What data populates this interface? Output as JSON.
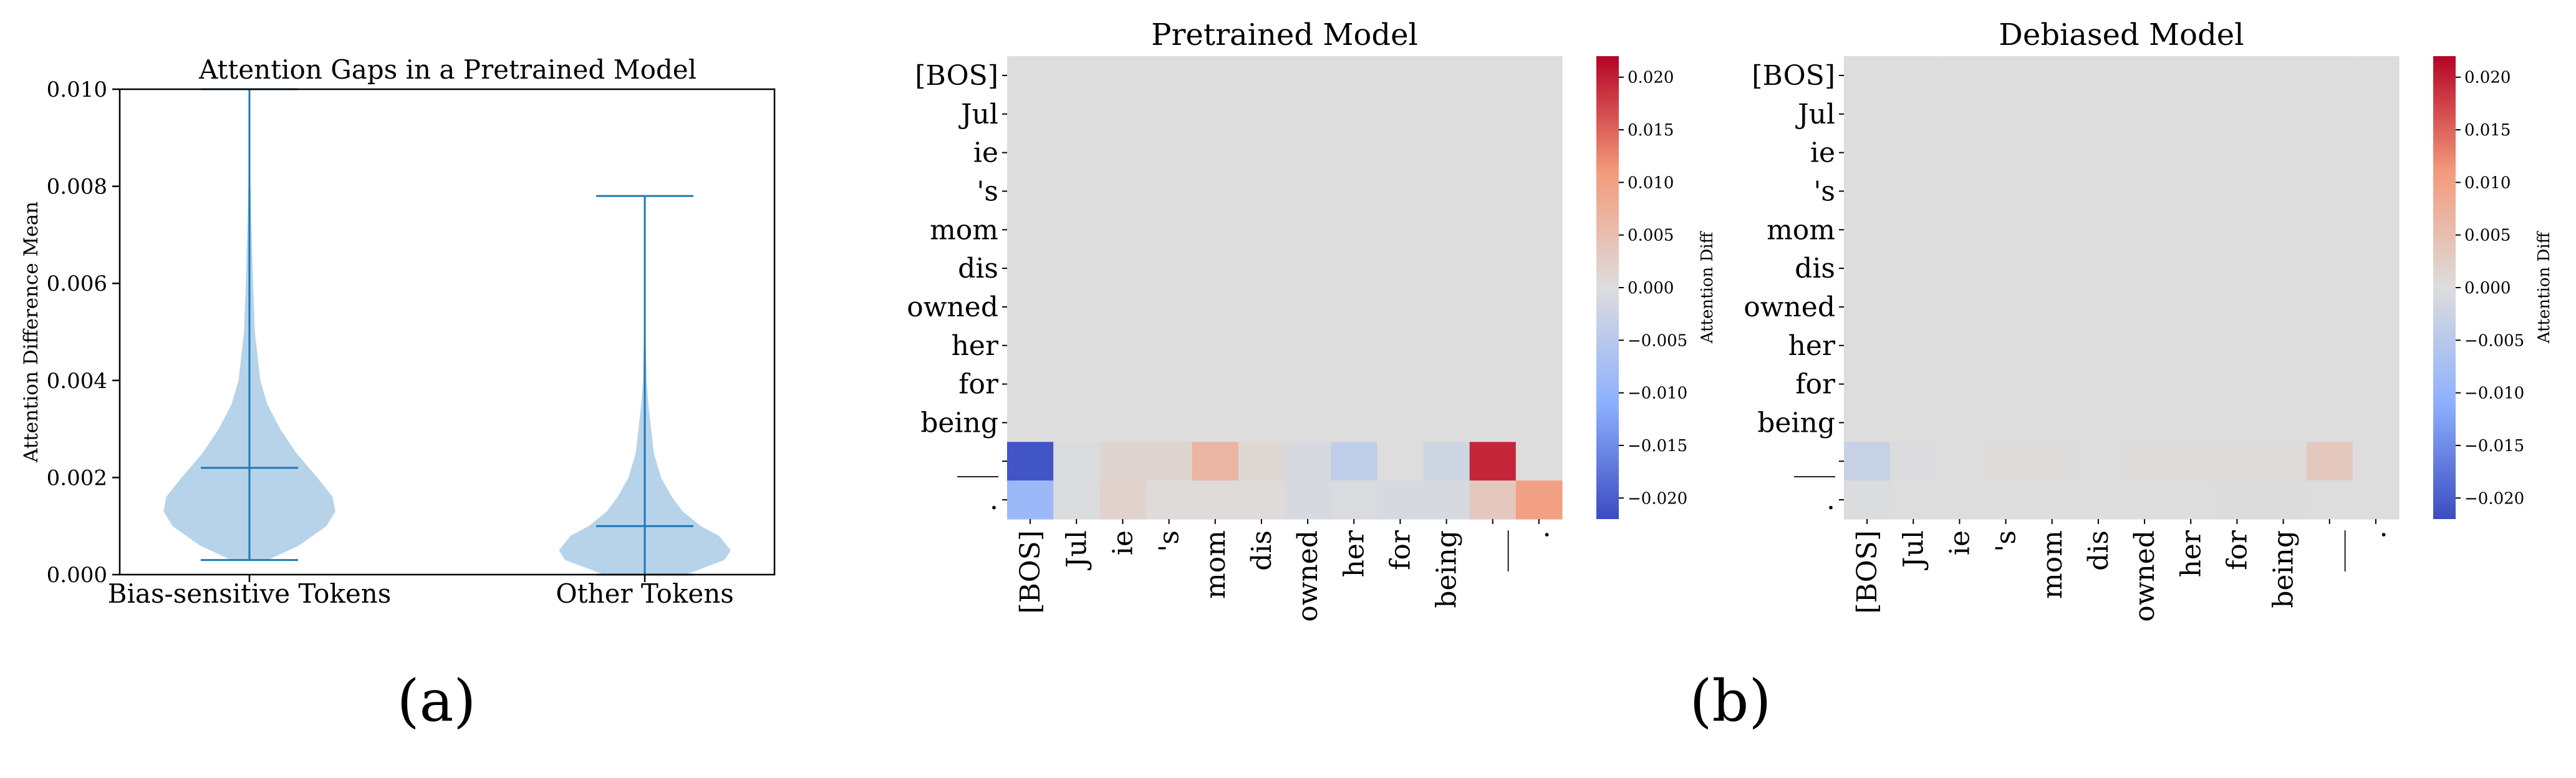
{
  "panel_labels": {
    "a": "(a)",
    "b": "(b)"
  },
  "violin": {
    "title": "Attention Gaps in a Pretrained Model",
    "ylabel": "Attention Difference Mean",
    "yticks": [
      "0.000",
      "0.002",
      "0.004",
      "0.006",
      "0.008",
      "0.010"
    ],
    "colors": {
      "body": "#b6d3ea",
      "line": "#1f77b4"
    }
  },
  "heatmap": {
    "tokens": [
      "[BOS]",
      "Jul",
      "ie",
      "'s",
      "mom",
      "dis",
      "owned",
      "her",
      "for",
      "being",
      "___",
      "."
    ],
    "colorbar_label": "Attention Diff",
    "colorbar_ticks": [
      "0.020",
      "0.015",
      "0.010",
      "0.005",
      "0.000",
      "−0.005",
      "−0.010",
      "−0.015",
      "−0.020"
    ],
    "colors": {
      "neutral": "#dcdcdc",
      "low": "#3b4cc0",
      "high": "#b40426"
    }
  },
  "chart_data": [
    {
      "type": "violin",
      "title": "Attention Gaps in a Pretrained Model",
      "xlabel": "",
      "ylabel": "Attention Difference Mean",
      "ylim": [
        0,
        0.01
      ],
      "categories": [
        "Bias-sensitive Tokens",
        "Other Tokens"
      ],
      "series": [
        {
          "name": "Bias-sensitive Tokens",
          "min": 0.0003,
          "max": 0.01,
          "mean": 0.0022,
          "profile": [
            [
              0.0003,
              0.2
            ],
            [
              0.0006,
              0.55
            ],
            [
              0.001,
              0.85
            ],
            [
              0.0013,
              0.95
            ],
            [
              0.0016,
              0.92
            ],
            [
              0.002,
              0.75
            ],
            [
              0.0025,
              0.52
            ],
            [
              0.003,
              0.34
            ],
            [
              0.0035,
              0.2
            ],
            [
              0.004,
              0.12
            ],
            [
              0.005,
              0.06
            ],
            [
              0.006,
              0.04
            ],
            [
              0.007,
              0.025
            ],
            [
              0.008,
              0.012
            ],
            [
              0.0095,
              0.004
            ],
            [
              0.01,
              0.0
            ]
          ]
        },
        {
          "name": "Other Tokens",
          "min": 0.0,
          "max": 0.0078,
          "mean": 0.001,
          "profile": [
            [
              0.0,
              0.45
            ],
            [
              0.0003,
              0.88
            ],
            [
              0.0005,
              0.95
            ],
            [
              0.0008,
              0.82
            ],
            [
              0.001,
              0.62
            ],
            [
              0.0013,
              0.42
            ],
            [
              0.0016,
              0.3
            ],
            [
              0.002,
              0.18
            ],
            [
              0.0025,
              0.1
            ],
            [
              0.003,
              0.07
            ],
            [
              0.0035,
              0.04
            ],
            [
              0.004,
              0.02
            ],
            [
              0.005,
              0.008
            ],
            [
              0.006,
              0.004
            ],
            [
              0.0078,
              0.0
            ]
          ]
        }
      ],
      "grid": false
    },
    {
      "type": "heatmap",
      "title": "Pretrained Model",
      "zlim": [
        -0.022,
        0.022
      ],
      "rows": [
        "[BOS]",
        "Jul",
        "ie",
        "'s",
        "mom",
        "dis",
        "owned",
        "her",
        "for",
        "being",
        "___",
        "."
      ],
      "cols": [
        "[BOS]",
        "Jul",
        "ie",
        "'s",
        "mom",
        "dis",
        "owned",
        "her",
        "for",
        "being",
        "___",
        "."
      ],
      "values": [
        [
          0,
          0,
          0,
          0,
          0,
          0,
          0,
          0,
          0,
          0,
          0,
          0
        ],
        [
          0,
          0,
          0,
          0,
          0,
          0,
          0,
          0,
          0,
          0,
          0,
          0
        ],
        [
          0,
          0,
          0,
          0,
          0,
          0,
          0,
          0,
          0,
          0,
          0,
          0
        ],
        [
          0,
          0,
          0,
          0,
          0,
          0,
          0,
          0,
          0,
          0,
          0,
          0
        ],
        [
          0,
          0,
          0,
          0,
          0,
          0,
          0,
          0,
          0,
          0,
          0,
          0
        ],
        [
          0,
          0,
          0,
          0,
          0,
          0,
          0,
          0,
          0,
          0,
          0,
          0
        ],
        [
          0,
          0,
          0,
          0,
          0,
          0,
          0,
          0,
          0,
          0,
          0,
          0
        ],
        [
          0,
          0,
          0,
          0,
          0,
          0,
          0,
          0,
          0,
          0,
          0,
          0
        ],
        [
          0,
          0,
          0,
          0,
          0,
          0,
          0,
          0,
          0,
          0,
          0,
          0
        ],
        [
          0,
          0,
          0,
          0,
          0,
          0,
          0,
          0,
          0,
          0,
          0,
          0
        ],
        [
          -0.021,
          -0.0005,
          0.0015,
          0.0015,
          0.0065,
          0.001,
          -0.001,
          -0.004,
          0.0,
          -0.002,
          0.0195,
          0.0
        ],
        [
          -0.009,
          -0.0003,
          0.0018,
          0.0003,
          0.0003,
          0.0003,
          -0.001,
          -0.0005,
          -0.001,
          -0.001,
          0.0035,
          0.01
        ]
      ],
      "colorbar_label": "Attention Diff"
    },
    {
      "type": "heatmap",
      "title": "Debiased Model",
      "zlim": [
        -0.022,
        0.022
      ],
      "rows": [
        "[BOS]",
        "Jul",
        "ie",
        "'s",
        "mom",
        "dis",
        "owned",
        "her",
        "for",
        "being",
        "___",
        "."
      ],
      "cols": [
        "[BOS]",
        "Jul",
        "ie",
        "'s",
        "mom",
        "dis",
        "owned",
        "her",
        "for",
        "being",
        "___",
        "."
      ],
      "values": [
        [
          0,
          0,
          0,
          0,
          0,
          0,
          0,
          0,
          0,
          0,
          0,
          0
        ],
        [
          0,
          0,
          0,
          0,
          0,
          0,
          0,
          0,
          0,
          0,
          0,
          0
        ],
        [
          0,
          0,
          0,
          0,
          0,
          0,
          0,
          0,
          0,
          0,
          0,
          0
        ],
        [
          0,
          0,
          0,
          0,
          0,
          0,
          0,
          0,
          0,
          0,
          0,
          0
        ],
        [
          0,
          0,
          0,
          0,
          0,
          0,
          0,
          0,
          0,
          0,
          0,
          0
        ],
        [
          0,
          0,
          0,
          0,
          0,
          0,
          0,
          0,
          0,
          0,
          0,
          0
        ],
        [
          0,
          0,
          0,
          0,
          0,
          0,
          0,
          0,
          0,
          0,
          0,
          0
        ],
        [
          0,
          0,
          0,
          0,
          0,
          0,
          0,
          0,
          0,
          0,
          0,
          0
        ],
        [
          0,
          0,
          0,
          0,
          0,
          0,
          0,
          0,
          0,
          0,
          0,
          0
        ],
        [
          0,
          0,
          0,
          0,
          0,
          0,
          0,
          0,
          0,
          0,
          0,
          0
        ],
        [
          -0.003,
          -0.0002,
          0.0,
          0.0002,
          0.0002,
          0.0,
          0.0003,
          0.0003,
          0.0002,
          0.0002,
          0.0035,
          0.0
        ],
        [
          -0.0003,
          0.0,
          0.0,
          0.0,
          0.0,
          0.0,
          0.0,
          0.0,
          0.0001,
          0.0001,
          0.0,
          0.0
        ]
      ],
      "colorbar_label": "Attention Diff"
    }
  ]
}
